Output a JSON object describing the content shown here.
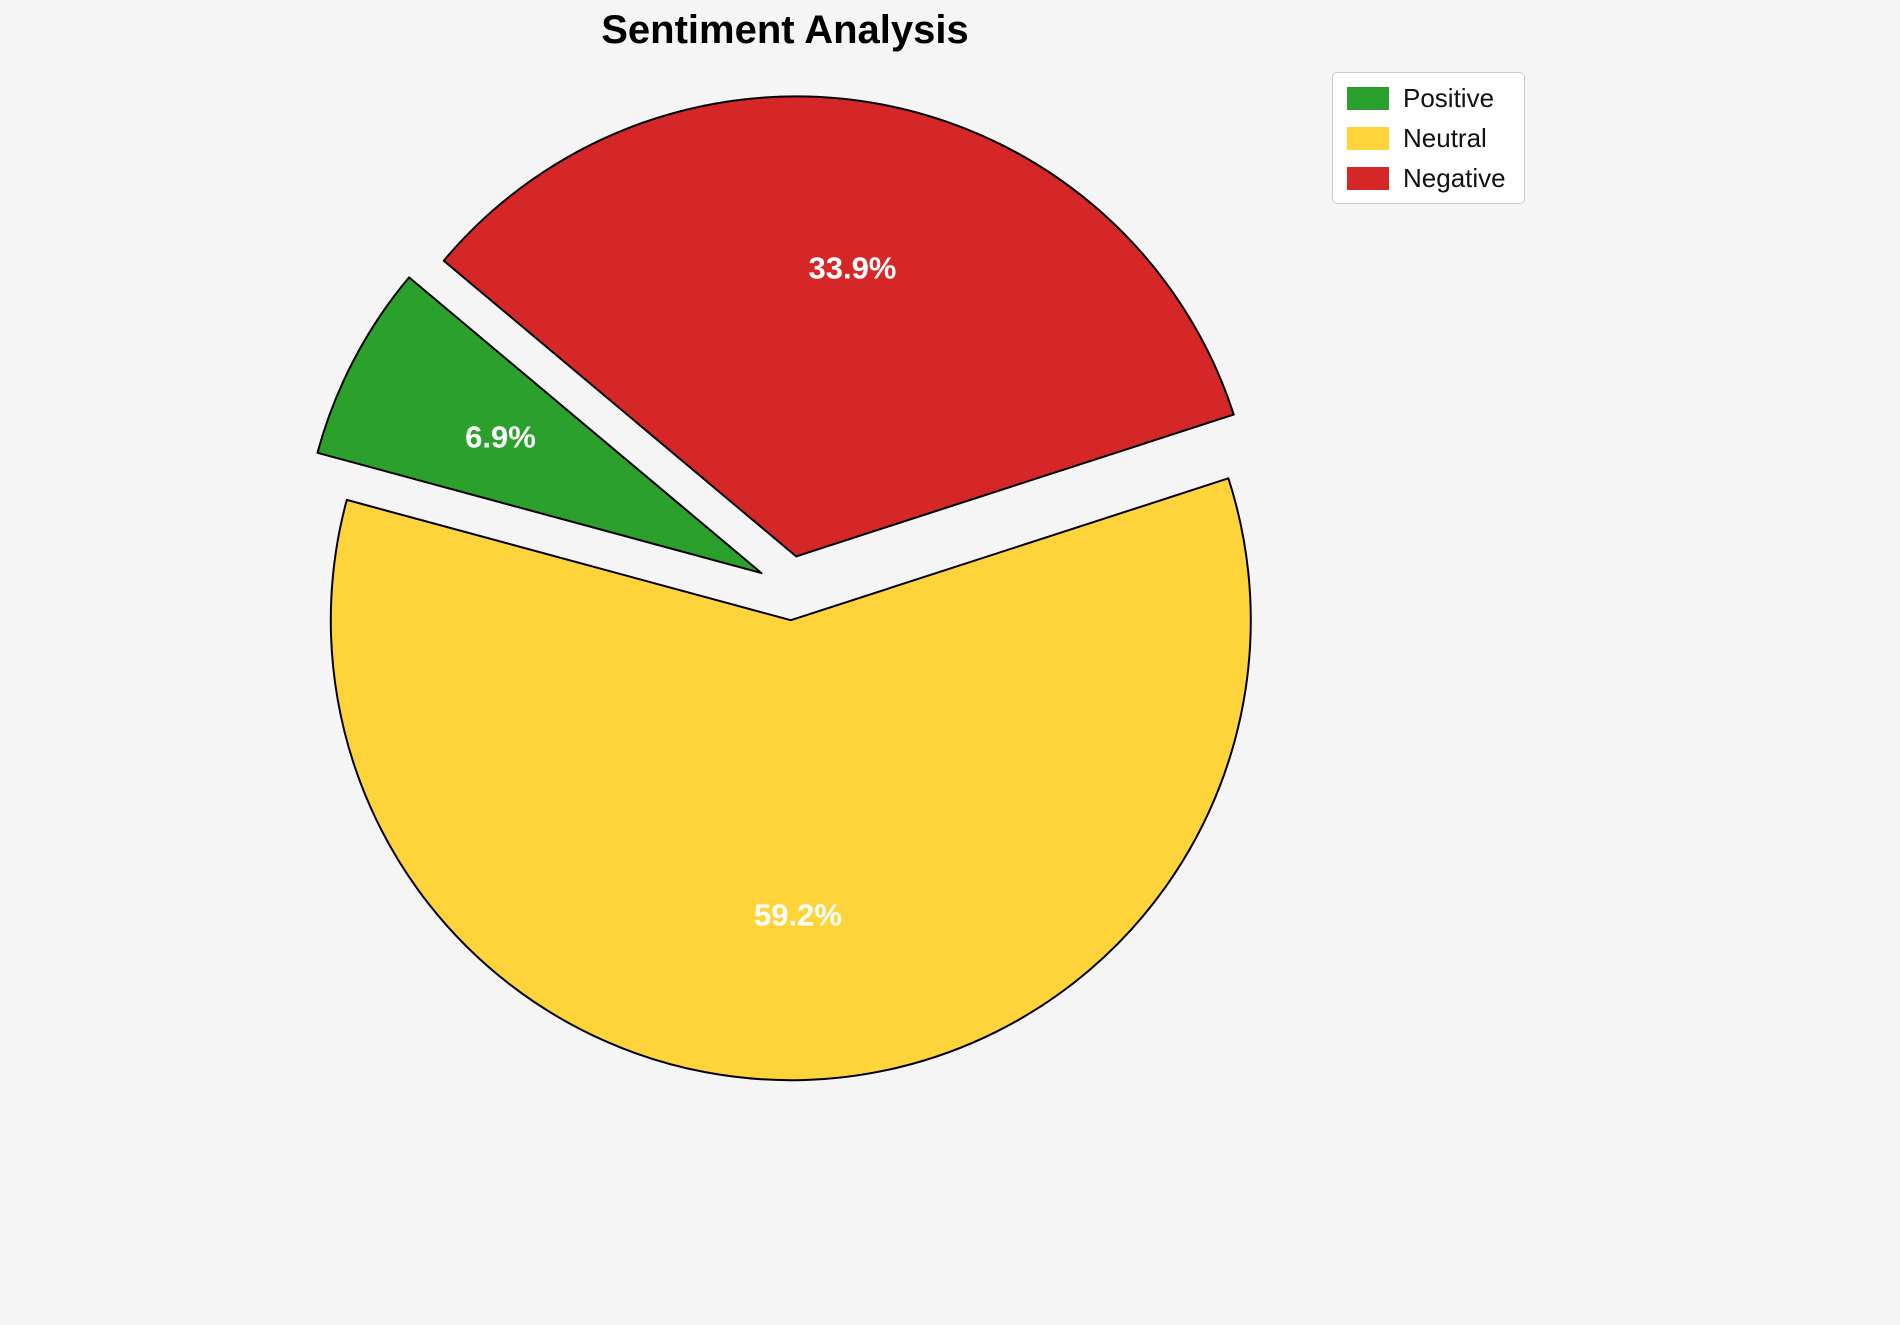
{
  "page": {
    "background": "#f5f5f5"
  },
  "chart_data": {
    "type": "pie",
    "title": "Sentiment Analysis",
    "labels": [
      "Positive",
      "Neutral",
      "Negative"
    ],
    "values": [
      6.9,
      59.2,
      33.9
    ],
    "value_labels": [
      "6.9%",
      "59.2%",
      "33.9%"
    ],
    "colors": [
      "#2ca02c",
      "#ffd43b",
      "#d62728"
    ],
    "edge_color": "#000000",
    "pct_label_color": "#ffffff",
    "start_angle": 140,
    "direction": "counterclockwise",
    "explode": 0.07,
    "pct_distance": 0.64,
    "legend": {
      "position": "upper right",
      "entries": [
        "Positive",
        "Neutral",
        "Negative"
      ]
    }
  }
}
